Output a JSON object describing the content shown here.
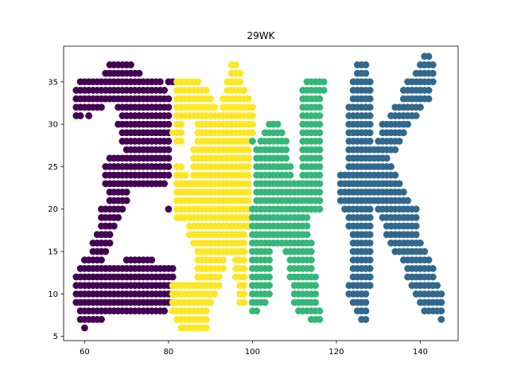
{
  "chart_data": {
    "type": "scatter",
    "title": "29WK",
    "xlabel": "",
    "ylabel": "",
    "xlim": [
      55,
      149
    ],
    "ylim": [
      4.5,
      39.2
    ],
    "x_ticks": [
      60,
      80,
      100,
      120,
      140
    ],
    "y_ticks": [
      5,
      10,
      15,
      20,
      25,
      30,
      35
    ],
    "grid": false,
    "legend": "none",
    "colors": {
      "purple": "#440154",
      "yellow": "#fde725",
      "green": "#35b779",
      "blue": "#31688e"
    },
    "series": [
      {
        "color": "#440154",
        "rows": [
          [
            37,
            66,
            71
          ],
          [
            36,
            65,
            73
          ],
          [
            35,
            59,
            78
          ],
          [
            35,
            80,
            81
          ],
          [
            34,
            58,
            79
          ],
          [
            33,
            58,
            80
          ],
          [
            32,
            58,
            64
          ],
          [
            32,
            68,
            80
          ],
          [
            31,
            58,
            59
          ],
          [
            31,
            61,
            61
          ],
          [
            31,
            69,
            80
          ],
          [
            30,
            68,
            80
          ],
          [
            29,
            69,
            80
          ],
          [
            28,
            69,
            80
          ],
          [
            27,
            70,
            80
          ],
          [
            26,
            66,
            80
          ],
          [
            25,
            65,
            80
          ],
          [
            24,
            65,
            80
          ],
          [
            23,
            65,
            79
          ],
          [
            22,
            66,
            70
          ],
          [
            21,
            66,
            70
          ],
          [
            20,
            64,
            69
          ],
          [
            20,
            80,
            80
          ],
          [
            19,
            64,
            68
          ],
          [
            18,
            64,
            67
          ],
          [
            17,
            63,
            66
          ],
          [
            16,
            62,
            66
          ],
          [
            15,
            62,
            65
          ],
          [
            14,
            60,
            64
          ],
          [
            14,
            70,
            76
          ],
          [
            13,
            59,
            81
          ],
          [
            12,
            58,
            81
          ],
          [
            11,
            58,
            81
          ],
          [
            10,
            58,
            81
          ],
          [
            9,
            58,
            81
          ],
          [
            8,
            59,
            79
          ],
          [
            7,
            59,
            64
          ],
          [
            6,
            60,
            60
          ]
        ]
      },
      {
        "color": "#fde725",
        "rows": [
          [
            37,
            95,
            96
          ],
          [
            36,
            95,
            97
          ],
          [
            35,
            82,
            87
          ],
          [
            35,
            94,
            97
          ],
          [
            34,
            82,
            89
          ],
          [
            34,
            94,
            98
          ],
          [
            33,
            82,
            90
          ],
          [
            33,
            93,
            99
          ],
          [
            32,
            82,
            91
          ],
          [
            32,
            93,
            100
          ],
          [
            31,
            82,
            92
          ],
          [
            31,
            93,
            100
          ],
          [
            30,
            82,
            83
          ],
          [
            30,
            87,
            100
          ],
          [
            29,
            81,
            83
          ],
          [
            29,
            87,
            100
          ],
          [
            28,
            82,
            83
          ],
          [
            28,
            87,
            99
          ],
          [
            27,
            86,
            99
          ],
          [
            26,
            86,
            99
          ],
          [
            25,
            82,
            83
          ],
          [
            25,
            86,
            99
          ],
          [
            24,
            82,
            84
          ],
          [
            24,
            86,
            99
          ],
          [
            23,
            82,
            99
          ],
          [
            22,
            82,
            99
          ],
          [
            21,
            82,
            99
          ],
          [
            20,
            82,
            99
          ],
          [
            19,
            82,
            99
          ],
          [
            18,
            85,
            99
          ],
          [
            17,
            85,
            98
          ],
          [
            16,
            86,
            98
          ],
          [
            15,
            87,
            98
          ],
          [
            14,
            87,
            93
          ],
          [
            14,
            96,
            98
          ],
          [
            13,
            87,
            93
          ],
          [
            13,
            96,
            98
          ],
          [
            12,
            87,
            92
          ],
          [
            12,
            96,
            98
          ],
          [
            11,
            81,
            92
          ],
          [
            11,
            97,
            98
          ],
          [
            10,
            81,
            91
          ],
          [
            10,
            97,
            98
          ],
          [
            9,
            81,
            90
          ],
          [
            9,
            97,
            98
          ],
          [
            8,
            81,
            89
          ],
          [
            7,
            82,
            89
          ],
          [
            6,
            83,
            89
          ]
        ]
      },
      {
        "color": "#35b779",
        "rows": [
          [
            35,
            113,
            117
          ],
          [
            34,
            112,
            117
          ],
          [
            33,
            112,
            116
          ],
          [
            32,
            112,
            116
          ],
          [
            31,
            112,
            116
          ],
          [
            30,
            104,
            106
          ],
          [
            30,
            112,
            116
          ],
          [
            29,
            103,
            107
          ],
          [
            29,
            112,
            116
          ],
          [
            28,
            100,
            100
          ],
          [
            28,
            102,
            108
          ],
          [
            28,
            112,
            116
          ],
          [
            27,
            101,
            108
          ],
          [
            27,
            112,
            116
          ],
          [
            26,
            101,
            108
          ],
          [
            26,
            112,
            116
          ],
          [
            25,
            101,
            109
          ],
          [
            25,
            112,
            116
          ],
          [
            24,
            101,
            109
          ],
          [
            24,
            112,
            116
          ],
          [
            23,
            101,
            116
          ],
          [
            22,
            101,
            116
          ],
          [
            21,
            101,
            116
          ],
          [
            20,
            100,
            116
          ],
          [
            19,
            100,
            113
          ],
          [
            18,
            100,
            113
          ],
          [
            17,
            100,
            113
          ],
          [
            16,
            100,
            114
          ],
          [
            15,
            100,
            104
          ],
          [
            15,
            108,
            114
          ],
          [
            14,
            100,
            104
          ],
          [
            14,
            109,
            114
          ],
          [
            13,
            100,
            104
          ],
          [
            13,
            109,
            114
          ],
          [
            12,
            100,
            104
          ],
          [
            12,
            109,
            115
          ],
          [
            11,
            100,
            104
          ],
          [
            11,
            110,
            115
          ],
          [
            10,
            100,
            104
          ],
          [
            10,
            110,
            115
          ],
          [
            9,
            100,
            103
          ],
          [
            9,
            110,
            115
          ],
          [
            8,
            100,
            101
          ],
          [
            8,
            111,
            116
          ],
          [
            7,
            114,
            116
          ]
        ]
      },
      {
        "color": "#31688e",
        "rows": [
          [
            38,
            141,
            142
          ],
          [
            37,
            125,
            127
          ],
          [
            37,
            140,
            143
          ],
          [
            36,
            125,
            127
          ],
          [
            36,
            139,
            143
          ],
          [
            35,
            124,
            128
          ],
          [
            35,
            137,
            143
          ],
          [
            34,
            124,
            128
          ],
          [
            34,
            136,
            142
          ],
          [
            33,
            124,
            128
          ],
          [
            33,
            136,
            142
          ],
          [
            32,
            123,
            128
          ],
          [
            32,
            134,
            140
          ],
          [
            31,
            123,
            128
          ],
          [
            31,
            133,
            139
          ],
          [
            30,
            123,
            128
          ],
          [
            30,
            131,
            137
          ],
          [
            29,
            123,
            128
          ],
          [
            29,
            131,
            136
          ],
          [
            28,
            123,
            128
          ],
          [
            28,
            130,
            135
          ],
          [
            27,
            123,
            128
          ],
          [
            27,
            129,
            134
          ],
          [
            26,
            123,
            132
          ],
          [
            25,
            123,
            133
          ],
          [
            24,
            121,
            134
          ],
          [
            23,
            121,
            135
          ],
          [
            22,
            121,
            136
          ],
          [
            21,
            121,
            137
          ],
          [
            20,
            122,
            128
          ],
          [
            20,
            130,
            139
          ],
          [
            19,
            123,
            128
          ],
          [
            19,
            131,
            139
          ],
          [
            18,
            123,
            128
          ],
          [
            18,
            132,
            139
          ],
          [
            17,
            124,
            128
          ],
          [
            17,
            132,
            139
          ],
          [
            16,
            124,
            128
          ],
          [
            16,
            133,
            140
          ],
          [
            15,
            124,
            128
          ],
          [
            15,
            134,
            141
          ],
          [
            14,
            124,
            128
          ],
          [
            14,
            136,
            142
          ],
          [
            13,
            124,
            128
          ],
          [
            13,
            137,
            143
          ],
          [
            12,
            124,
            128
          ],
          [
            12,
            137,
            143
          ],
          [
            11,
            123,
            128
          ],
          [
            11,
            138,
            144
          ],
          [
            10,
            123,
            127
          ],
          [
            10,
            139,
            145
          ],
          [
            9,
            124,
            127
          ],
          [
            9,
            140,
            145
          ],
          [
            8,
            125,
            127
          ],
          [
            8,
            141,
            145
          ],
          [
            7,
            126,
            127
          ],
          [
            7,
            145,
            145
          ]
        ]
      }
    ]
  }
}
